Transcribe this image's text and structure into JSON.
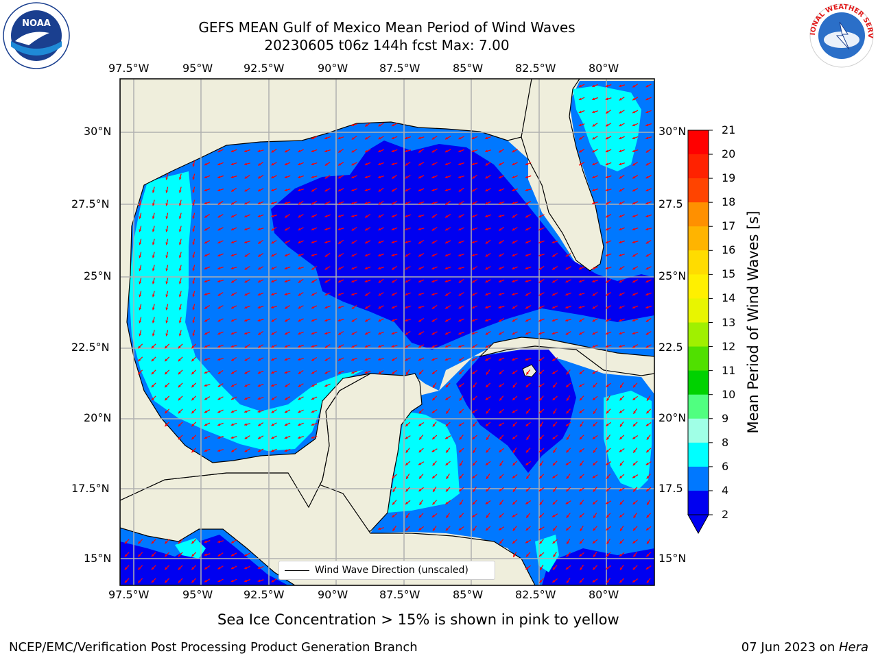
{
  "header": {
    "title_line1": "GEFS MEAN Gulf of Mexico Mean Period of Wind Waves",
    "title_line2": "20230605 t06z 144h fcst   Max: 7.00"
  },
  "logos": {
    "left": "NOAA",
    "right": "NATIONAL WEATHER SERVICE"
  },
  "map": {
    "lon_ticks": [
      "97.5°W",
      "95°W",
      "92.5°W",
      "90°W",
      "87.5°W",
      "85°W",
      "82.5°W",
      "80°W"
    ],
    "lat_ticks_left": [
      "30°N",
      "27.5°N",
      "25°N",
      "22.5°N",
      "20°N",
      "17.5°N",
      "15°N"
    ],
    "lat_ticks_right": [
      "30°N",
      "27.5",
      "25°N",
      "22.5",
      "20°N",
      "17.5",
      "15°N"
    ],
    "legend_label": "Wind Wave Direction (unscaled)",
    "colors": {
      "land": "#efeedc",
      "class_2_4": "#0078ff",
      "class_lt2": "#0000f0",
      "class_4_6": "#00ffff",
      "arrow": "#ff0000"
    }
  },
  "colorbar": {
    "label": "Mean Period of Wind Waves [s]",
    "ticks": [
      "21",
      "20",
      "19",
      "18",
      "17",
      "16",
      "15",
      "14",
      "13",
      "12",
      "11",
      "10",
      "9",
      "8",
      "6",
      "4",
      "2"
    ],
    "colors": [
      "#ff0000",
      "#ff2200",
      "#ff4400",
      "#ff6a00",
      "#ff9000",
      "#ffb400",
      "#ffdc00",
      "#fff000",
      "#e8f500",
      "#c8f000",
      "#a0f000",
      "#50e000",
      "#00d200",
      "#50ff80",
      "#a0ffe6",
      "#50ffff",
      "#00ffff",
      "#0078ff",
      "#0000f0"
    ]
  },
  "notes": {
    "sea_ice": "Sea Ice Concentration > 15% is shown in pink to yellow"
  },
  "footer": {
    "left": "NCEP/EMC/Verification Post Processing Product Generation Branch",
    "right_date": "07 Jun 2023 on ",
    "right_machine": "Hera"
  }
}
